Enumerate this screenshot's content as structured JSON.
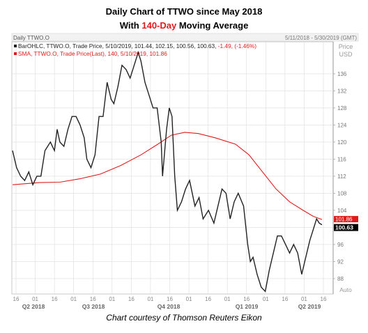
{
  "title": {
    "line1": "Daily Chart of TTWO since May 2018",
    "line2_prefix": "With ",
    "line2_highlight": "140-Day",
    "line2_suffix": " Moving Average"
  },
  "caption": "Chart courtesy of Thomson Reuters Eikon",
  "chart_data": {
    "type": "line",
    "panel_title": "Daily TTWO.O",
    "date_range_label": "5/11/2018 - 5/30/2019 (GMT)",
    "currency_label": "Price",
    "currency_unit": "USD",
    "legend": [
      {
        "text": "BarOHLC, TTWO.O, Trade Price, 5/10/2019, 101.44, 102.15, 100.56, 100.63, ",
        "change": "-1.49, (-1.46%)"
      },
      {
        "text": "SMA, TTWO.O, Trade Price(Last), 140, 5/10/2019, 101.86"
      }
    ],
    "y_ticks": [
      88,
      92,
      96,
      100,
      104,
      108,
      112,
      116,
      120,
      124,
      128,
      132,
      136
    ],
    "ylim": [
      84.4,
      143.5
    ],
    "x_day_labels": [
      "16",
      "01",
      "16",
      "01",
      "16",
      "01",
      "16",
      "01",
      "16",
      "01",
      "16",
      "01",
      "16",
      "01",
      "16",
      "01",
      "16"
    ],
    "x_quarter_labels": [
      "Q2 2018",
      "Q3 2018",
      "Q4 2018",
      "Q1 2019",
      "Q2 2019"
    ],
    "x_unit_label": "Auto",
    "last_price": 100.63,
    "last_sma": 101.86,
    "last_price_label": "100.63",
    "last_sma_label": "101.86",
    "colors": {
      "price": "#222222",
      "sma": "#e01b1b",
      "grid": "#dcdcdc",
      "price_tag": "#000000",
      "sma_tag": "#e01b1b"
    },
    "series": [
      {
        "name": "TTWO.O Trade Price",
        "points": [
          [
            0,
            118
          ],
          [
            6,
            114
          ],
          [
            12,
            112
          ],
          [
            18,
            111
          ],
          [
            24,
            113
          ],
          [
            30,
            110
          ],
          [
            36,
            112
          ],
          [
            42,
            112
          ],
          [
            48,
            118
          ],
          [
            56,
            120
          ],
          [
            62,
            118
          ],
          [
            66,
            123
          ],
          [
            70,
            120
          ],
          [
            76,
            119
          ],
          [
            82,
            123
          ],
          [
            88,
            126
          ],
          [
            94,
            126
          ],
          [
            100,
            124
          ],
          [
            106,
            121
          ],
          [
            110,
            116
          ],
          [
            116,
            114
          ],
          [
            122,
            117
          ],
          [
            128,
            126
          ],
          [
            134,
            126
          ],
          [
            140,
            134
          ],
          [
            146,
            130
          ],
          [
            150,
            129
          ],
          [
            156,
            133
          ],
          [
            162,
            138
          ],
          [
            168,
            137
          ],
          [
            174,
            135
          ],
          [
            180,
            138
          ],
          [
            186,
            141
          ],
          [
            190,
            139
          ],
          [
            196,
            134
          ],
          [
            202,
            131
          ],
          [
            208,
            128
          ],
          [
            214,
            128
          ],
          [
            220,
            120
          ],
          [
            222,
            112
          ],
          [
            228,
            123
          ],
          [
            232,
            128
          ],
          [
            236,
            126
          ],
          [
            240,
            112
          ],
          [
            244,
            104
          ],
          [
            250,
            106
          ],
          [
            256,
            109
          ],
          [
            262,
            111
          ],
          [
            270,
            105
          ],
          [
            276,
            107
          ],
          [
            282,
            102
          ],
          [
            290,
            104
          ],
          [
            298,
            101
          ],
          [
            304,
            105
          ],
          [
            310,
            109
          ],
          [
            316,
            108
          ],
          [
            322,
            102
          ],
          [
            328,
            106
          ],
          [
            334,
            108
          ],
          [
            342,
            105
          ],
          [
            348,
            96
          ],
          [
            352,
            92
          ],
          [
            356,
            93
          ],
          [
            362,
            89
          ],
          [
            368,
            86
          ],
          [
            374,
            85
          ],
          [
            380,
            90
          ],
          [
            386,
            94
          ],
          [
            392,
            98
          ],
          [
            398,
            98
          ],
          [
            404,
            96
          ],
          [
            410,
            94
          ],
          [
            416,
            96
          ],
          [
            422,
            94
          ],
          [
            428,
            89
          ],
          [
            434,
            93
          ],
          [
            440,
            97
          ],
          [
            446,
            100
          ],
          [
            450,
            102
          ],
          [
            454,
            101
          ],
          [
            458,
            100.63
          ]
        ]
      },
      {
        "name": "SMA 140",
        "points": [
          [
            0,
            110
          ],
          [
            40,
            110.5
          ],
          [
            70,
            110.6
          ],
          [
            100,
            111.4
          ],
          [
            130,
            112.5
          ],
          [
            160,
            114.5
          ],
          [
            190,
            117
          ],
          [
            215,
            119.5
          ],
          [
            235,
            121.6
          ],
          [
            255,
            122.3
          ],
          [
            275,
            122
          ],
          [
            300,
            121
          ],
          [
            330,
            119.5
          ],
          [
            350,
            117
          ],
          [
            370,
            113
          ],
          [
            390,
            109
          ],
          [
            410,
            106
          ],
          [
            430,
            104
          ],
          [
            445,
            102.6
          ],
          [
            458,
            101.86
          ]
        ]
      }
    ]
  }
}
